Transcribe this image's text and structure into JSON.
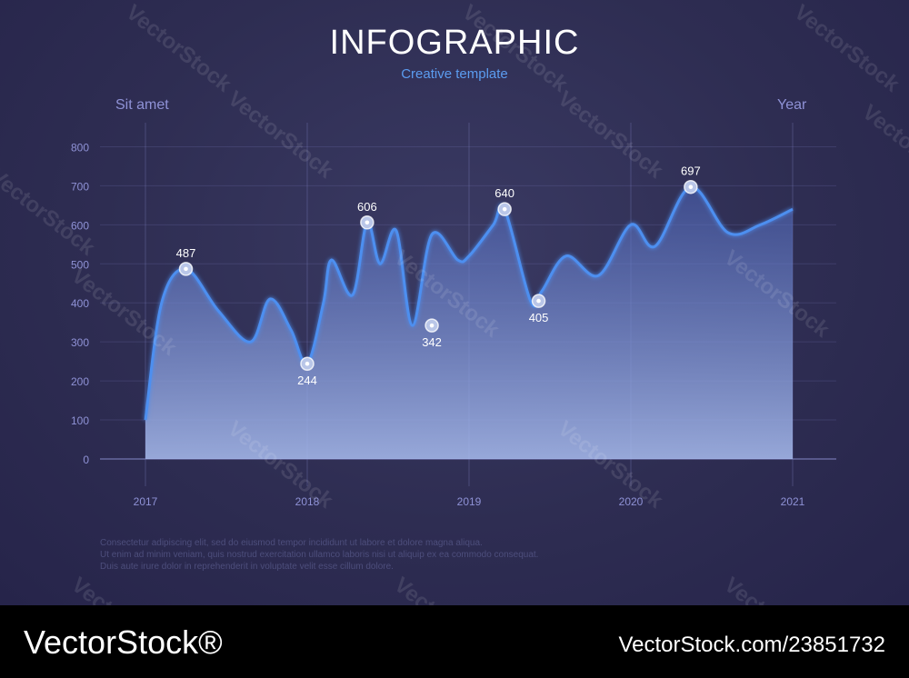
{
  "header": {
    "title": "INFOGRAPHIC",
    "subtitle": "Creative template"
  },
  "colors": {
    "line": "#4d8ff0",
    "fill_top": "#5f7fd0",
    "fill_bottom": "#9fb6ea",
    "axis_text": "#8f92d6",
    "background": "#2e2d52"
  },
  "chart_data": {
    "type": "area",
    "ylabel": "Sit amet",
    "xlabel": "Year",
    "ylim": [
      0,
      850
    ],
    "xlim": [
      2017,
      2021
    ],
    "yticks": [
      0,
      100,
      200,
      300,
      400,
      500,
      600,
      700,
      800
    ],
    "xticks": [
      "2017",
      "2018",
      "2019",
      "2020",
      "2021"
    ],
    "grid": true,
    "series": [
      {
        "x": [
          2017.0,
          2017.1,
          2017.25,
          2017.45,
          2017.65,
          2017.77,
          2017.9,
          2018.0,
          2018.1,
          2018.15,
          2018.28,
          2018.37,
          2018.45,
          2018.55,
          2018.65,
          2018.77,
          2018.93,
          2019.0,
          2019.15,
          2019.22,
          2019.38,
          2019.45,
          2019.6,
          2019.8,
          2020.0,
          2020.15,
          2020.37,
          2020.6,
          2020.8,
          2021.0
        ],
        "values": [
          100,
          400,
          487,
          380,
          300,
          410,
          330,
          244,
          400,
          510,
          420,
          606,
          500,
          585,
          342,
          575,
          510,
          520,
          600,
          640,
          405,
          430,
          520,
          470,
          600,
          545,
          697,
          580,
          600,
          640
        ]
      }
    ],
    "annotations": [
      {
        "x": 2017.25,
        "y": 487,
        "label": "487",
        "position": "above"
      },
      {
        "x": 2018.0,
        "y": 244,
        "label": "244",
        "position": "below"
      },
      {
        "x": 2018.37,
        "y": 606,
        "label": "606",
        "position": "above"
      },
      {
        "x": 2018.77,
        "y": 342,
        "label": "342",
        "position": "below"
      },
      {
        "x": 2019.22,
        "y": 640,
        "label": "640",
        "position": "above"
      },
      {
        "x": 2019.43,
        "y": 405,
        "label": "405",
        "position": "below"
      },
      {
        "x": 2020.37,
        "y": 697,
        "label": "697",
        "position": "above"
      }
    ]
  },
  "body_text": [
    "Consectetur adipiscing elit, sed do eiusmod tempor incididunt ut labore et dolore magna aliqua.",
    "Ut enim ad minim veniam, quis nostrud exercitation ullamco laboris nisi ut aliquip ex ea commodo consequat.",
    "Duis aute irure dolor in reprehenderit in voluptate velit esse cillum dolore."
  ],
  "watermark": "VectorStock",
  "footer": {
    "brand": "VectorStock®",
    "image_id": "VectorStock.com/23851732"
  }
}
